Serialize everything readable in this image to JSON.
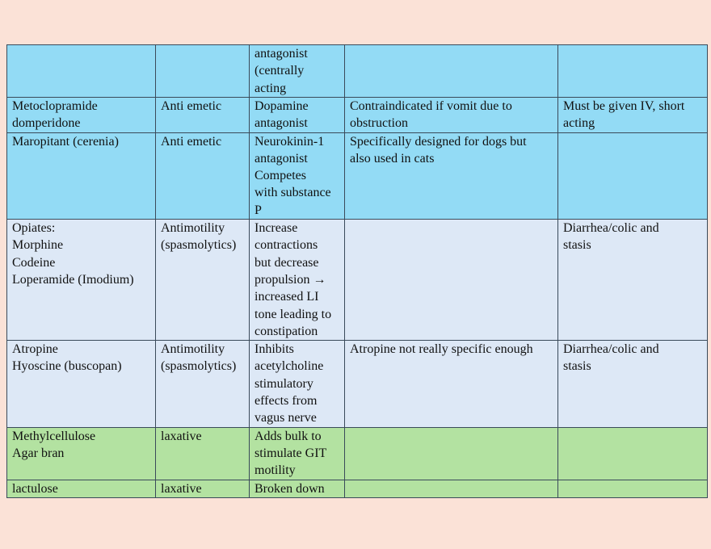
{
  "colors": {
    "background": "#fbe2d7",
    "antiemetic_rows": "#93dbf5",
    "antimotility_rows": "#dde8f6",
    "laxative_rows": "#b3e2a1"
  },
  "rows": [
    {
      "group": "blue",
      "cells": [
        "",
        "",
        "antagonist\n(centrally\nacting",
        "",
        ""
      ]
    },
    {
      "group": "blue",
      "cells": [
        "Metoclopramide\ndomperidone",
        "Anti emetic",
        "Dopamine\nantagonist",
        "Contraindicated if vomit due to\nobstruction",
        "Must be given IV, short\nacting"
      ]
    },
    {
      "group": "blue",
      "cells": [
        "Maropitant (cerenia)",
        "Anti emetic",
        "Neurokinin-1\nantagonist\nCompetes\nwith substance\nP",
        "Specifically designed for dogs but\nalso used in cats",
        ""
      ]
    },
    {
      "group": "light",
      "cells": [
        "Opiates:\nMorphine\nCodeine\nLoperamide (Imodium)",
        "Antimotility\n(spasmolytics)",
        "Increase\ncontractions\nbut decrease\npropulsion →\nincreased LI\ntone leading to\nconstipation",
        "",
        "Diarrhea/colic and\nstasis"
      ]
    },
    {
      "group": "light",
      "cells": [
        "Atropine\nHyoscine (buscopan)",
        "Antimotility\n(spasmolytics)",
        "Inhibits\nacetylcholine\nstimulatory\neffects from\nvagus nerve",
        "Atropine not really specific enough",
        "Diarrhea/colic and\nstasis"
      ]
    },
    {
      "group": "green",
      "cells": [
        "Methylcellulose\nAgar bran",
        "laxative",
        "Adds bulk to\nstimulate GIT\nmotility",
        "",
        ""
      ]
    },
    {
      "group": "green",
      "cells": [
        "lactulose",
        "laxative",
        "Broken down",
        "",
        ""
      ]
    }
  ]
}
